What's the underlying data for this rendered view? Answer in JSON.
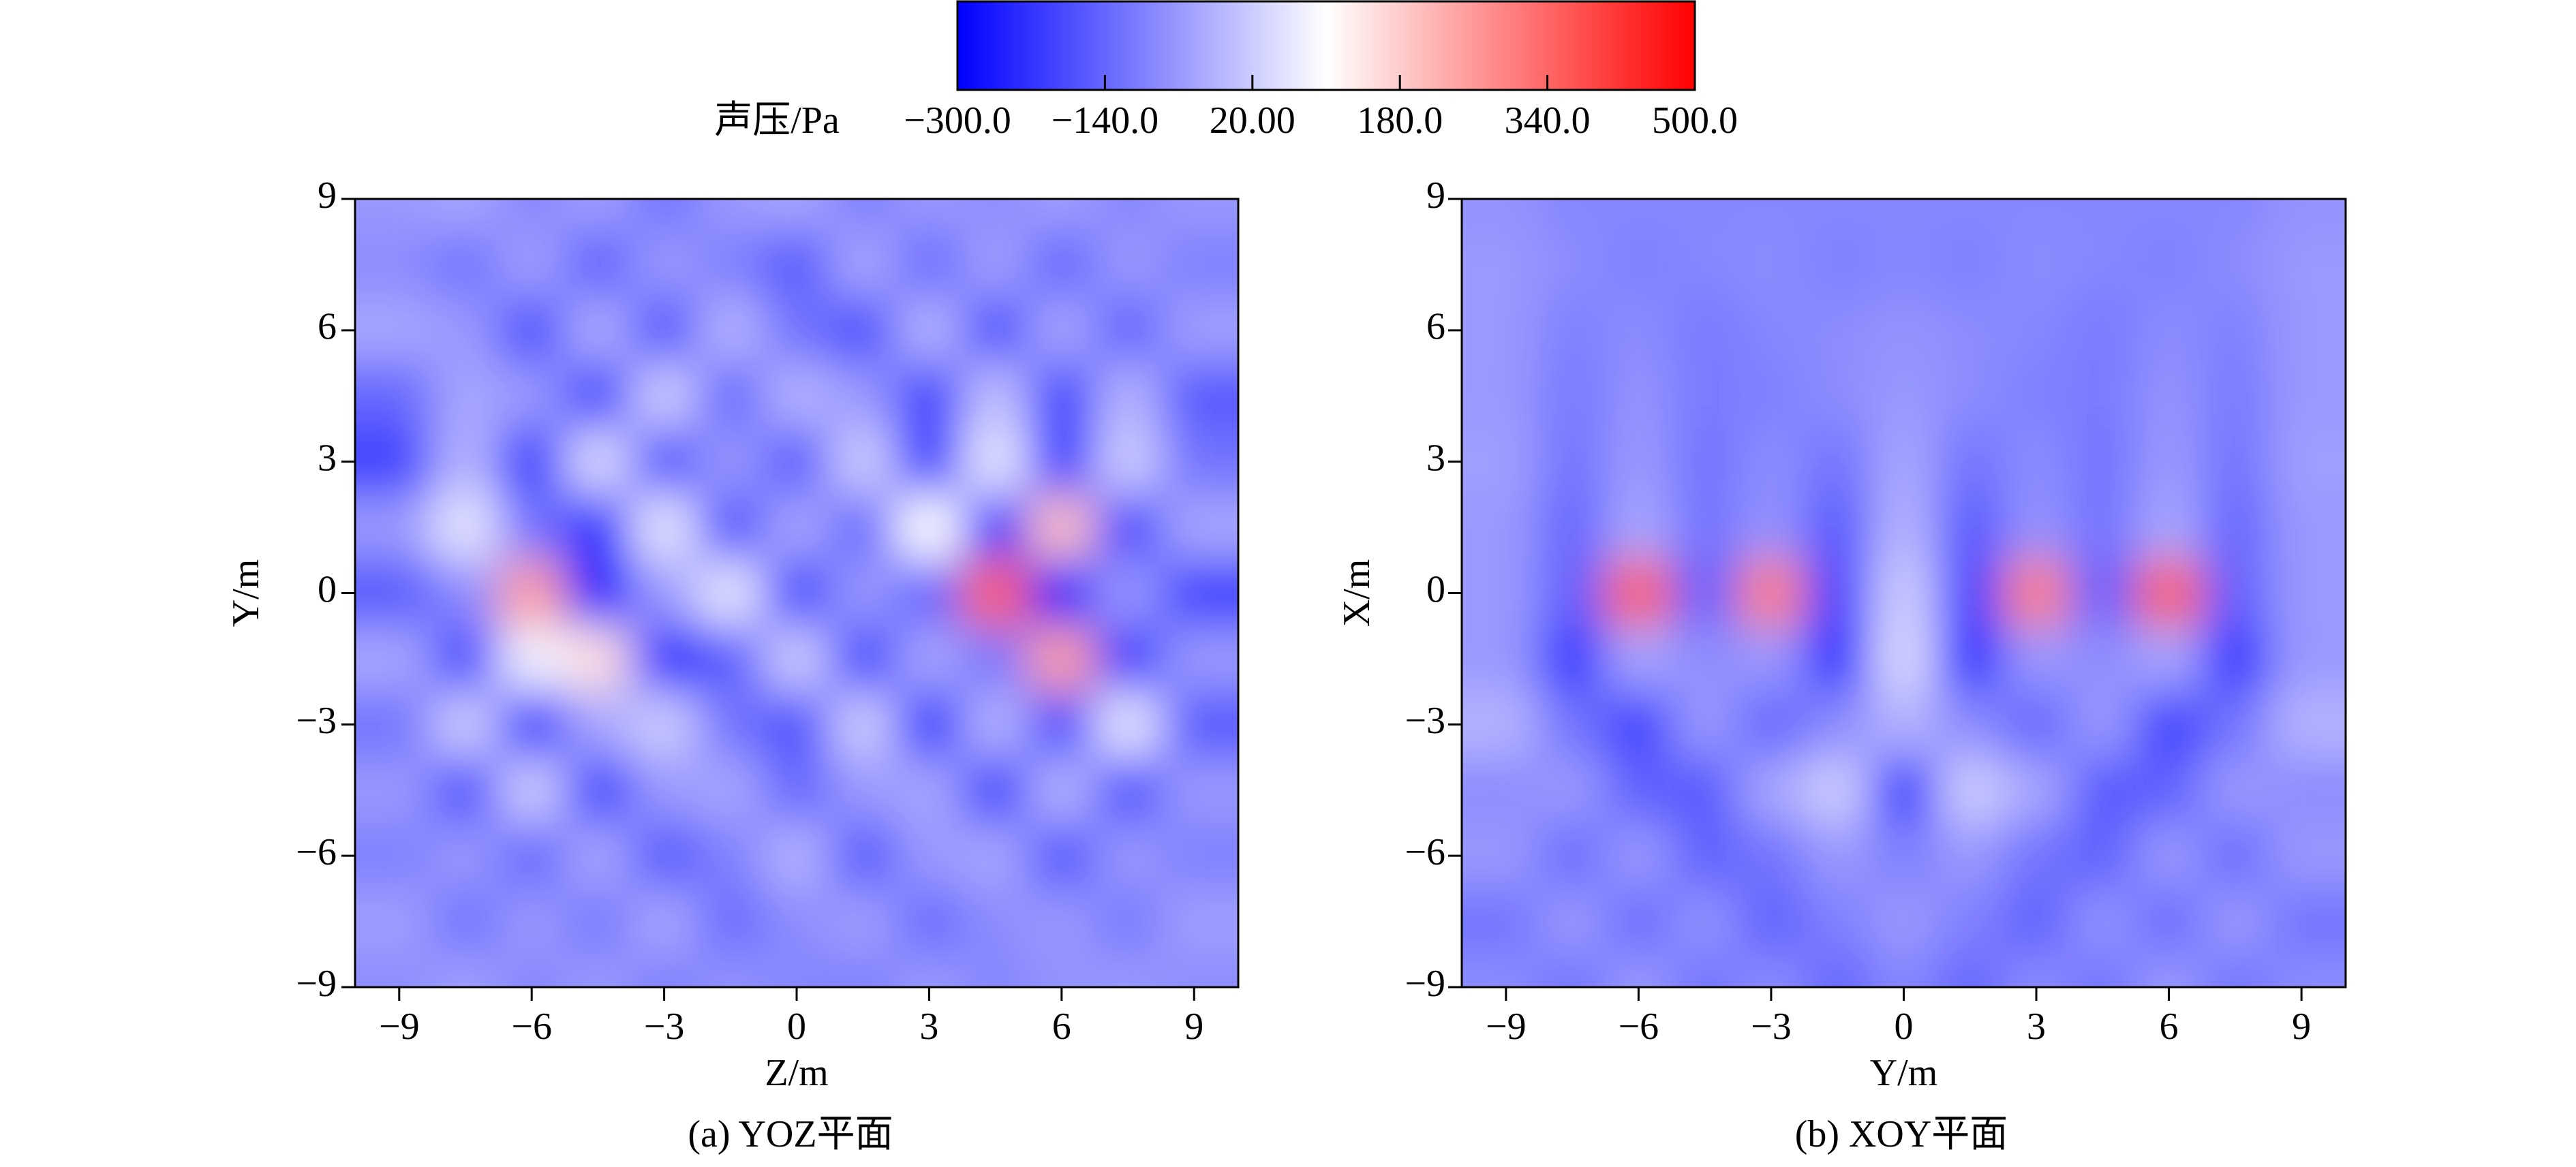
{
  "colorbar": {
    "label": "声压/Pa",
    "colormap": [
      "#0000ff",
      "#ffffff",
      "#ff0000"
    ],
    "lim": [
      -300,
      500
    ],
    "ticks": [
      {
        "value": -300,
        "label": "−300.0"
      },
      {
        "value": -140,
        "label": "−140.0"
      },
      {
        "value": 20,
        "label": "20.00"
      },
      {
        "value": 180,
        "label": "180.0"
      },
      {
        "value": 340,
        "label": "340.0"
      },
      {
        "value": 500,
        "label": "500.0"
      }
    ]
  },
  "chart_data": [
    {
      "type": "heatmap",
      "caption": "(a) YOZ平面",
      "xlabel": "Z/m",
      "ylabel": "Y/m",
      "xlim": [
        -10,
        10
      ],
      "ylim": [
        -9,
        9
      ],
      "xticks": [
        {
          "value": -9,
          "label": "−9"
        },
        {
          "value": -6,
          "label": "−6"
        },
        {
          "value": -3,
          "label": "−3"
        },
        0,
        3,
        6,
        9
      ],
      "yticks": [
        {
          "value": -9,
          "label": "−9"
        },
        {
          "value": -6,
          "label": "−6"
        },
        {
          "value": -3,
          "label": "−3"
        },
        0,
        3,
        6,
        9
      ],
      "x": [
        -9,
        -7.5,
        -6,
        -4.5,
        -3,
        -1.5,
        0,
        1.5,
        3,
        4.5,
        6,
        7.5,
        9
      ],
      "y": [
        9,
        7.5,
        6,
        4.5,
        3,
        1.5,
        0,
        -1.5,
        -3,
        -4.5,
        -6,
        -7.5,
        -9
      ],
      "z": [
        [
          -60,
          -40,
          -90,
          -50,
          -120,
          -60,
          -40,
          -100,
          -60,
          -80,
          -50,
          -90,
          -60
        ],
        [
          -80,
          -120,
          -50,
          -150,
          -60,
          -100,
          -160,
          -40,
          -130,
          -50,
          -140,
          -60,
          -100
        ],
        [
          -40,
          -60,
          -180,
          -30,
          -170,
          -20,
          -120,
          -180,
          -20,
          -180,
          -40,
          -150,
          -50
        ],
        [
          -140,
          -40,
          -60,
          -200,
          20,
          -140,
          -20,
          -60,
          -200,
          0,
          -200,
          -20,
          -160
        ],
        [
          -200,
          -20,
          -220,
          40,
          -180,
          -60,
          -160,
          20,
          -220,
          60,
          -220,
          20,
          -120
        ],
        [
          -60,
          60,
          -120,
          -250,
          60,
          -180,
          -40,
          -140,
          100,
          -250,
          200,
          -200,
          -40
        ],
        [
          -160,
          -80,
          250,
          -300,
          -60,
          60,
          -200,
          -60,
          -150,
          350,
          -300,
          -60,
          -200
        ],
        [
          -40,
          -200,
          80,
          150,
          -250,
          -160,
          20,
          -200,
          -40,
          -120,
          250,
          -220,
          -60
        ],
        [
          -120,
          20,
          -220,
          -40,
          20,
          -120,
          -180,
          20,
          -220,
          -20,
          -200,
          60,
          -160
        ],
        [
          -60,
          -180,
          20,
          -200,
          -60,
          -40,
          -140,
          -60,
          -40,
          -200,
          -20,
          -180,
          -60
        ],
        [
          -100,
          -60,
          -140,
          -40,
          -160,
          -100,
          -20,
          -160,
          -60,
          -40,
          -170,
          -60,
          -100
        ],
        [
          -50,
          -120,
          -60,
          -110,
          -40,
          -130,
          -80,
          -50,
          -130,
          -80,
          -60,
          -110,
          -50
        ],
        [
          -80,
          -50,
          -90,
          -60,
          -100,
          -70,
          -90,
          -100,
          -60,
          -90,
          -70,
          -60,
          -80
        ]
      ]
    },
    {
      "type": "heatmap",
      "caption": "(b) XOY平面",
      "xlabel": "Y/m",
      "ylabel": "X/m",
      "xlim": [
        -10,
        10
      ],
      "ylim": [
        -9,
        9
      ],
      "xticks": [
        {
          "value": -9,
          "label": "−9"
        },
        {
          "value": -6,
          "label": "−6"
        },
        {
          "value": -3,
          "label": "−3"
        },
        0,
        3,
        6,
        9
      ],
      "yticks": [
        {
          "value": -9,
          "label": "−9"
        },
        {
          "value": -6,
          "label": "−6"
        },
        {
          "value": -3,
          "label": "−3"
        },
        0,
        3,
        6,
        9
      ],
      "x": [
        -9,
        -7.5,
        -6,
        -4.5,
        -3,
        -1.5,
        0,
        1.5,
        3,
        4.5,
        6,
        7.5,
        9
      ],
      "y": [
        9,
        7.5,
        6,
        4.5,
        3,
        1.5,
        0,
        -1.5,
        -3,
        -4.5,
        -6,
        -7.5,
        -9
      ],
      "z": [
        [
          -70,
          -90,
          -90,
          -90,
          -90,
          -90,
          -90,
          -90,
          -90,
          -90,
          -90,
          -90,
          -70
        ],
        [
          -60,
          -80,
          -100,
          -90,
          -80,
          -100,
          -90,
          -100,
          -80,
          -90,
          -100,
          -80,
          -60
        ],
        [
          -60,
          -100,
          -80,
          -110,
          -90,
          -80,
          -70,
          -80,
          -90,
          -110,
          -80,
          -100,
          -60
        ],
        [
          -60,
          -110,
          -70,
          -110,
          -100,
          -80,
          -60,
          -80,
          -100,
          -110,
          -70,
          -110,
          -60
        ],
        [
          -50,
          -120,
          -60,
          -120,
          -80,
          -120,
          -40,
          -120,
          -80,
          -120,
          -60,
          -120,
          -50
        ],
        [
          -60,
          -140,
          -40,
          -120,
          -70,
          -160,
          -20,
          -160,
          -70,
          -120,
          -40,
          -140,
          -60
        ],
        [
          -60,
          -150,
          350,
          -150,
          300,
          -200,
          20,
          -200,
          300,
          -150,
          350,
          -150,
          -60
        ],
        [
          -60,
          -220,
          -40,
          -80,
          -60,
          -240,
          40,
          -240,
          -60,
          -80,
          -40,
          -220,
          -60
        ],
        [
          -20,
          -120,
          -200,
          -60,
          -140,
          -80,
          -20,
          -80,
          -140,
          -60,
          -200,
          -120,
          -20
        ],
        [
          -80,
          -60,
          -150,
          -160,
          -40,
          20,
          -220,
          20,
          -40,
          -160,
          -150,
          -60,
          -80
        ],
        [
          -60,
          -130,
          -60,
          -150,
          -120,
          -60,
          -100,
          -60,
          -120,
          -150,
          -60,
          -130,
          -60
        ],
        [
          -120,
          -60,
          -130,
          -70,
          -150,
          -100,
          -60,
          -100,
          -150,
          -70,
          -130,
          -60,
          -120
        ],
        [
          -80,
          -120,
          -60,
          -120,
          -80,
          -140,
          -90,
          -140,
          -80,
          -120,
          -60,
          -120,
          -80
        ]
      ]
    }
  ]
}
